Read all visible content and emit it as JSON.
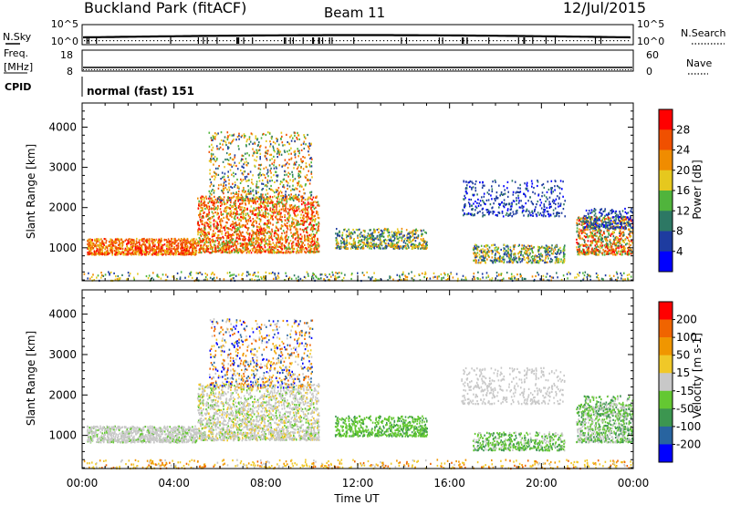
{
  "header": {
    "station": "Buckland Park (fitACF)",
    "beam": "Beam 11",
    "date": "12/Jul/2015"
  },
  "strips": {
    "nsky": {
      "label": "N.Sky",
      "ticks": [
        "10^5",
        "10^0"
      ],
      "right_label": "N.Search",
      "right_ticks": [
        "10^5",
        "10^0"
      ]
    },
    "freq": {
      "label_line1": "Freq.",
      "label_line2": "[MHz]",
      "ticks": [
        "18",
        "8"
      ],
      "right_label": "Nave",
      "right_ticks": [
        "60",
        "0"
      ]
    },
    "cpid": {
      "label": "CPID",
      "text": "normal (fast) 151"
    }
  },
  "colors": {
    "power_scale": [
      "#0000ff",
      "#1e3ca0",
      "#2d7864",
      "#50b43c",
      "#e6c81e",
      "#f08c00",
      "#f05000",
      "#ff0000"
    ],
    "velocity_scale": [
      "#0000ff",
      "#2864a0",
      "#3c9650",
      "#64c832",
      "#c8c8c8",
      "#f0c828",
      "#f09600",
      "#f06400",
      "#ff0000"
    ]
  },
  "chart_data": [
    {
      "type": "heatmap",
      "name": "power",
      "xlabel": "",
      "ylabel": "Slant Range [km]",
      "xlim": [
        "00:00",
        "24:00"
      ],
      "ylim": [
        180,
        4600
      ],
      "yticks": [
        "1000",
        "2000",
        "3000",
        "4000"
      ],
      "colorbar": {
        "label": "Power [dB]",
        "ticks": [
          "28",
          "24",
          "20",
          "16",
          "12",
          "8",
          "4"
        ]
      }
    },
    {
      "type": "heatmap",
      "name": "velocity",
      "xlabel": "Time UT",
      "ylabel": "Slant Range [km]",
      "xlim": [
        "00:00",
        "24:00"
      ],
      "ylim": [
        180,
        4600
      ],
      "xticks": [
        "00:00",
        "04:00",
        "08:00",
        "12:00",
        "16:00",
        "20:00",
        "00:00"
      ],
      "yticks": [
        "1000",
        "2000",
        "3000",
        "4000"
      ],
      "colorbar": {
        "label": "Velocity [m s-1]",
        "ticks": [
          "200",
          "100",
          "50",
          "15",
          "-15",
          "-50",
          "-100",
          "-200"
        ]
      }
    }
  ]
}
